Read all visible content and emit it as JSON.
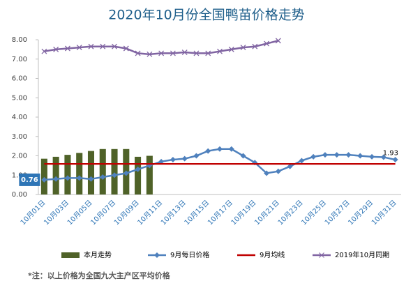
{
  "chart_data": {
    "type": "combo",
    "title": "2020年10月份全国鸭苗价格走势",
    "categories": [
      "10月01日",
      null,
      "10月03日",
      null,
      "10月05日",
      null,
      "10月07日",
      null,
      "10月09日",
      null,
      "10月11日",
      null,
      "10月13日",
      null,
      "10月15日",
      null,
      "10月17日",
      null,
      "10月19日",
      null,
      "10月21日",
      null,
      "10月23日",
      null,
      "10月25日",
      null,
      "10月27日",
      null,
      "10月29日",
      null,
      "10月31日"
    ],
    "series": [
      {
        "name": "本月走势",
        "kind": "bar",
        "color": "#4f6228",
        "values": [
          1.85,
          1.95,
          2.05,
          2.15,
          2.25,
          2.35,
          2.35,
          2.35,
          1.95,
          2.0,
          null,
          null,
          null,
          null,
          null,
          null,
          null,
          null,
          null,
          null,
          null,
          null,
          null,
          null,
          null,
          null,
          null,
          null,
          null,
          null,
          null
        ]
      },
      {
        "name": "9月每日价格",
        "kind": "line",
        "marker": "diamond",
        "color": "#4f81bd",
        "values": [
          0.76,
          0.8,
          0.85,
          0.85,
          0.8,
          0.9,
          1.0,
          1.1,
          1.3,
          1.5,
          1.7,
          1.8,
          1.85,
          2.0,
          2.25,
          2.35,
          2.35,
          2.0,
          1.65,
          1.1,
          1.2,
          1.45,
          1.75,
          1.95,
          2.05,
          2.05,
          2.05,
          2.0,
          1.95,
          1.93,
          1.8
        ],
        "value_labels": [
          "0.76",
          null,
          null,
          null,
          null,
          null,
          null,
          null,
          null,
          null,
          null,
          null,
          null,
          null,
          null,
          null,
          null,
          null,
          null,
          null,
          null,
          null,
          null,
          null,
          null,
          null,
          null,
          null,
          null,
          "1.93",
          null
        ]
      },
      {
        "name": "9月均线",
        "kind": "line",
        "marker": "none",
        "color": "#c00000",
        "values": [
          1.58,
          1.58,
          1.58,
          1.58,
          1.58,
          1.58,
          1.58,
          1.58,
          1.58,
          1.58,
          1.58,
          1.58,
          1.58,
          1.58,
          1.58,
          1.58,
          1.58,
          1.58,
          1.58,
          1.58,
          1.58,
          1.58,
          1.58,
          1.58,
          1.58,
          1.58,
          1.58,
          1.58,
          1.58,
          1.58,
          1.58
        ]
      },
      {
        "name": "2019年10月同期",
        "kind": "line",
        "marker": "x",
        "color": "#8064a2",
        "values": [
          7.4,
          7.5,
          7.55,
          7.6,
          7.65,
          7.65,
          7.65,
          7.55,
          7.3,
          7.25,
          7.3,
          7.3,
          7.35,
          7.3,
          7.3,
          7.4,
          7.5,
          7.6,
          7.65,
          7.8,
          7.95,
          null,
          null,
          null,
          null,
          null,
          null,
          null,
          null,
          null,
          null
        ]
      }
    ],
    "ylim": [
      0,
      8
    ],
    "yticks": [
      {
        "value": 0,
        "label": "0.00"
      },
      {
        "value": 1,
        "label": "1.00"
      },
      {
        "value": 2,
        "label": "2.00"
      },
      {
        "value": 3,
        "label": "3.00"
      },
      {
        "value": 4,
        "label": "4.00"
      },
      {
        "value": 5,
        "label": "5.00"
      },
      {
        "value": 6,
        "label": "6.00"
      },
      {
        "value": 7,
        "label": "7.00"
      },
      {
        "value": 8,
        "label": "8.00"
      }
    ],
    "grid": false,
    "legend": "bottom",
    "note": "*注：以上价格为全国九大主产区平均价格"
  }
}
